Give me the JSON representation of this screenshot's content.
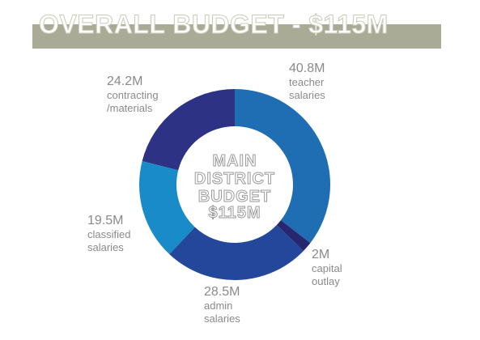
{
  "chart_data": {
    "type": "donut",
    "title": "OVERALL BUDGET - $115M",
    "center_label": [
      "MAIN",
      "DISTRICT",
      "BUDGET",
      "$115M"
    ],
    "categories": [
      "teacher salaries",
      "capital outlay",
      "admin salaries",
      "classified salaries",
      "contracting /materials"
    ],
    "values": [
      40.8,
      2,
      28.5,
      19.5,
      24.2
    ],
    "value_labels": [
      "40.8M",
      "2M",
      "28.5M",
      "19.5M",
      "24.2M"
    ],
    "colors": [
      "#1f6db3",
      "#26276e",
      "#24479c",
      "#1a8bc9",
      "#2e3284"
    ]
  }
}
